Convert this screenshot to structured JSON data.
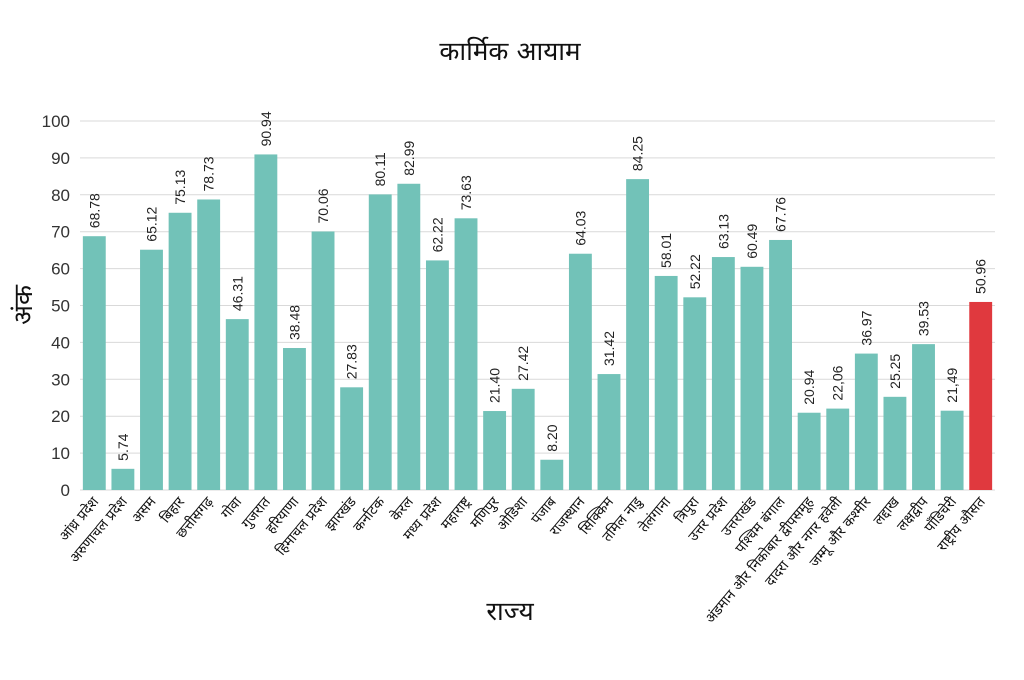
{
  "chart_data": {
    "type": "bar",
    "title": "कार्मिक आयाम",
    "xlabel": "राज्य",
    "ylabel": "अंक",
    "ylim": [
      0,
      100
    ],
    "yticks": [
      0,
      10,
      20,
      30,
      40,
      50,
      60,
      70,
      80,
      90,
      100
    ],
    "grid": true,
    "categories": [
      "आंध्र प्रदेश",
      "अरुणाचल प्रदेश",
      "असम",
      "बिहार",
      "छत्तीसगढ़",
      "गोवा",
      "गुजरात",
      "हरियाणा",
      "हिमाचल प्रदेश",
      "झारखंड",
      "कर्नाटक",
      "केरल",
      "मध्य प्रदेश",
      "महाराष्ट्र",
      "मणिपुर",
      "ओडिशा",
      "पंजाब",
      "राजस्थान",
      "सिक्किम",
      "तमिल नाडु",
      "तेलंगाना",
      "त्रिपुरा",
      "उत्तर प्रदेश",
      "उत्तराखंड",
      "पश्चिम बंगाल",
      "अंडमान और निकोबार द्वीपसमूह",
      "दादरा और नगर हवेली",
      "जम्मू और कश्मीर",
      "लद्दाख",
      "लक्षद्वीप",
      "पॉंडिचेरी",
      "राष्ट्रीय औसत"
    ],
    "values": [
      68.78,
      5.74,
      65.12,
      75.13,
      78.73,
      46.31,
      90.94,
      38.48,
      70.06,
      27.83,
      80.11,
      82.99,
      62.22,
      73.63,
      21.4,
      27.42,
      8.2,
      64.03,
      31.42,
      84.25,
      58.01,
      52.22,
      63.13,
      60.49,
      67.76,
      20.94,
      22.06,
      36.97,
      25.25,
      39.53,
      21.49,
      50.96
    ],
    "value_labels": [
      "68.78",
      "5.74",
      "65.12",
      "75.13",
      "78.73",
      "46.31",
      "90.94",
      "38.48",
      "70.06",
      "27.83",
      "80.11",
      "82.99",
      "62.22",
      "73.63",
      "21.40",
      "27.42",
      "8.20",
      "64.03",
      "31.42",
      "84.25",
      "58.01",
      "52.22",
      "63.13",
      "60.49",
      "67.76",
      "20.94",
      "22,06",
      "36.97",
      "25.25",
      "39.53",
      "21,49",
      "50.96"
    ],
    "colors": {
      "default": "#72c2b8",
      "highlight": "#e0393e"
    },
    "highlight_category": "राष्ट्रीय औसत"
  }
}
